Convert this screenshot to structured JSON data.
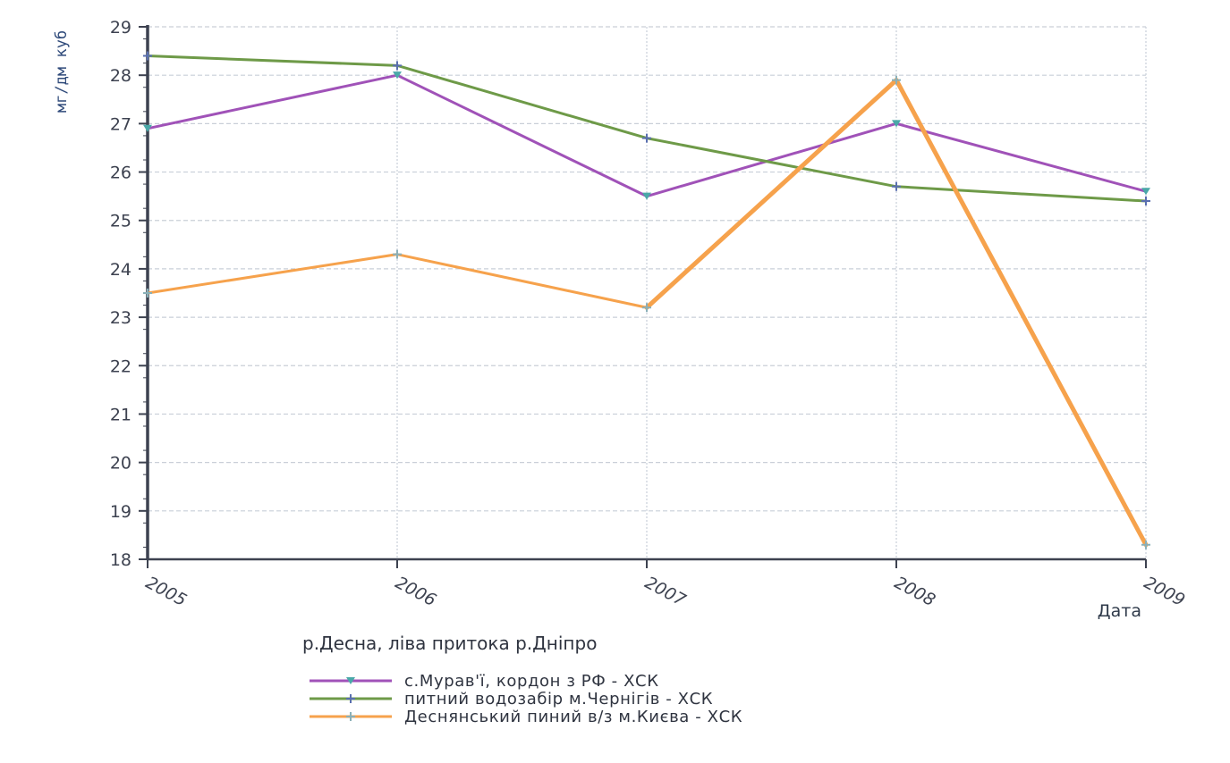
{
  "chart_data": {
    "type": "line",
    "title": "",
    "subtitle": "р.Десна, ліва притока р.Дніпро",
    "ylabel": "мг/дм куб",
    "xlabel": "Дата",
    "categories": [
      "2005",
      "2006",
      "2007",
      "2008",
      "2009"
    ],
    "ylim": [
      18,
      29
    ],
    "yticks": [
      "18",
      "19",
      "20",
      "21",
      "22",
      "23",
      "24",
      "25",
      "26",
      "27",
      "28",
      "29"
    ],
    "grid": true,
    "legend_position": "bottom",
    "series": [
      {
        "name": "с.Мурав'ї, кордон з РФ - ХСК",
        "values": [
          26.9,
          28.0,
          25.5,
          27.0,
          25.6
        ],
        "color": "#a052b8",
        "marker": "triangle",
        "marker_color": "#4aa8a8"
      },
      {
        "name": "питний водозабір м.Чернігів - ХСК",
        "values": [
          28.4,
          28.2,
          26.7,
          25.7,
          25.4
        ],
        "color": "#6e9a48",
        "marker": "plus",
        "marker_color": "#5a6fb0"
      },
      {
        "name": "Деснянський пиний в/з м.Києва - ХСК",
        "values": [
          23.5,
          24.3,
          23.2,
          27.9,
          18.3
        ],
        "color": "#f6a24c",
        "marker": "plus",
        "marker_color": "#8ab0b8"
      }
    ]
  },
  "colors": {
    "axis": "#3d4250",
    "grid": "#c9cfd8"
  }
}
